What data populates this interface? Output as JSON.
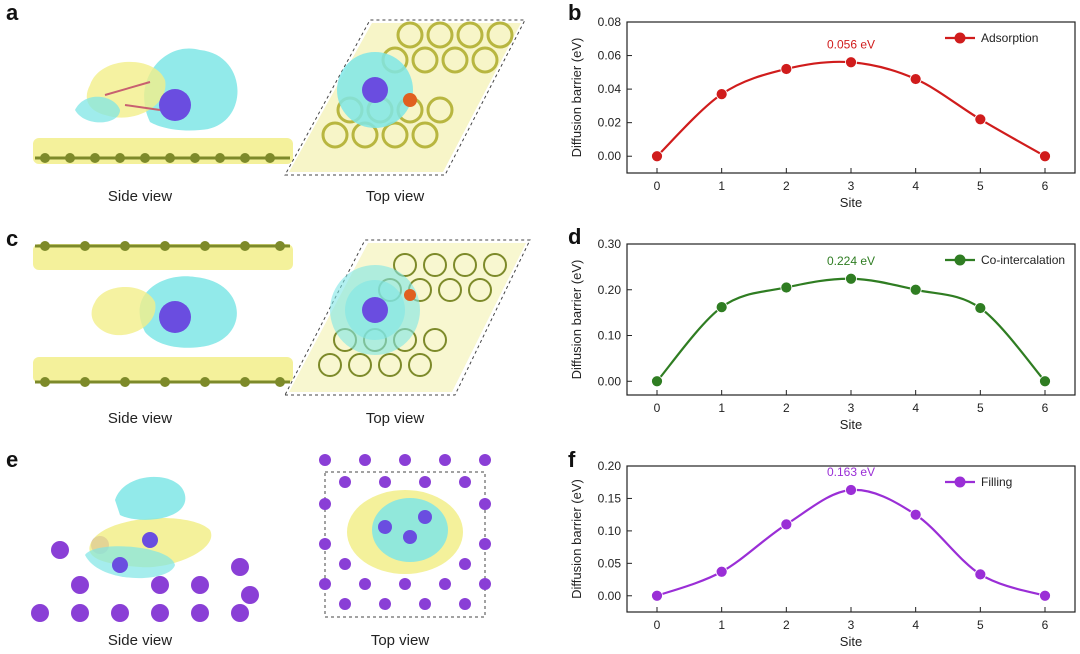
{
  "panels": {
    "a": "a",
    "b": "b",
    "c": "c",
    "d": "d",
    "e": "e",
    "f": "f"
  },
  "captions": {
    "a_side": "Side view",
    "a_top": "Top view",
    "c_side": "Side view",
    "c_top": "Top view",
    "e_side": "Side view",
    "e_top": "Top view"
  },
  "colors": {
    "adsorption": "#d01c1c",
    "cointercalation": "#2f7d22",
    "filling": "#9a2ed6",
    "graphite": "#7d8a2a",
    "charge_yellow": "#f2ef8a",
    "charge_cyan": "#7fe6e6",
    "atom_purple": "#8a3fd6"
  },
  "chart_data": [
    {
      "type": "line",
      "panel": "b",
      "xlabel": "Site",
      "ylabel": "Diffusion barrier (eV)",
      "x": [
        0,
        1,
        2,
        3,
        4,
        5,
        6
      ],
      "ylim": [
        -0.01,
        0.08
      ],
      "yticks": [
        "0.00",
        "0.02",
        "0.04",
        "0.06",
        "0.08"
      ],
      "ytick_values": [
        0.0,
        0.02,
        0.04,
        0.06,
        0.08
      ],
      "xticks": [
        "0",
        "1",
        "2",
        "3",
        "4",
        "5",
        "6"
      ],
      "series": [
        {
          "name": "Adsorption",
          "values": [
            0.0,
            0.037,
            0.052,
            0.056,
            0.046,
            0.022,
            0.0
          ]
        }
      ],
      "annotation": "0.056 eV",
      "legend": "top-right"
    },
    {
      "type": "line",
      "panel": "d",
      "xlabel": "Site",
      "ylabel": "Diffusion barrier (eV)",
      "x": [
        0,
        1,
        2,
        3,
        4,
        5,
        6
      ],
      "ylim": [
        -0.03,
        0.3
      ],
      "yticks": [
        "0.00",
        "0.10",
        "0.20",
        "0.30"
      ],
      "ytick_values": [
        0.0,
        0.1,
        0.2,
        0.3
      ],
      "xticks": [
        "0",
        "1",
        "2",
        "3",
        "4",
        "5",
        "6"
      ],
      "series": [
        {
          "name": "Co-intercalation",
          "values": [
            0.0,
            0.162,
            0.205,
            0.224,
            0.2,
            0.16,
            0.0
          ]
        }
      ],
      "annotation": "0.224 eV",
      "legend": "top-right"
    },
    {
      "type": "line",
      "panel": "f",
      "xlabel": "Site",
      "ylabel": "Diffusion barrier (eV)",
      "x": [
        0,
        1,
        2,
        3,
        4,
        5,
        6
      ],
      "ylim": [
        -0.025,
        0.2
      ],
      "yticks": [
        "0.00",
        "0.05",
        "0.10",
        "0.15",
        "0.20"
      ],
      "ytick_values": [
        0.0,
        0.05,
        0.1,
        0.15,
        0.2
      ],
      "xticks": [
        "0",
        "1",
        "2",
        "3",
        "4",
        "5",
        "6"
      ],
      "series": [
        {
          "name": "Filling",
          "values": [
            0.0,
            0.037,
            0.11,
            0.163,
            0.125,
            0.033,
            0.0
          ]
        }
      ],
      "annotation": "0.163 eV",
      "legend": "top-right"
    }
  ]
}
